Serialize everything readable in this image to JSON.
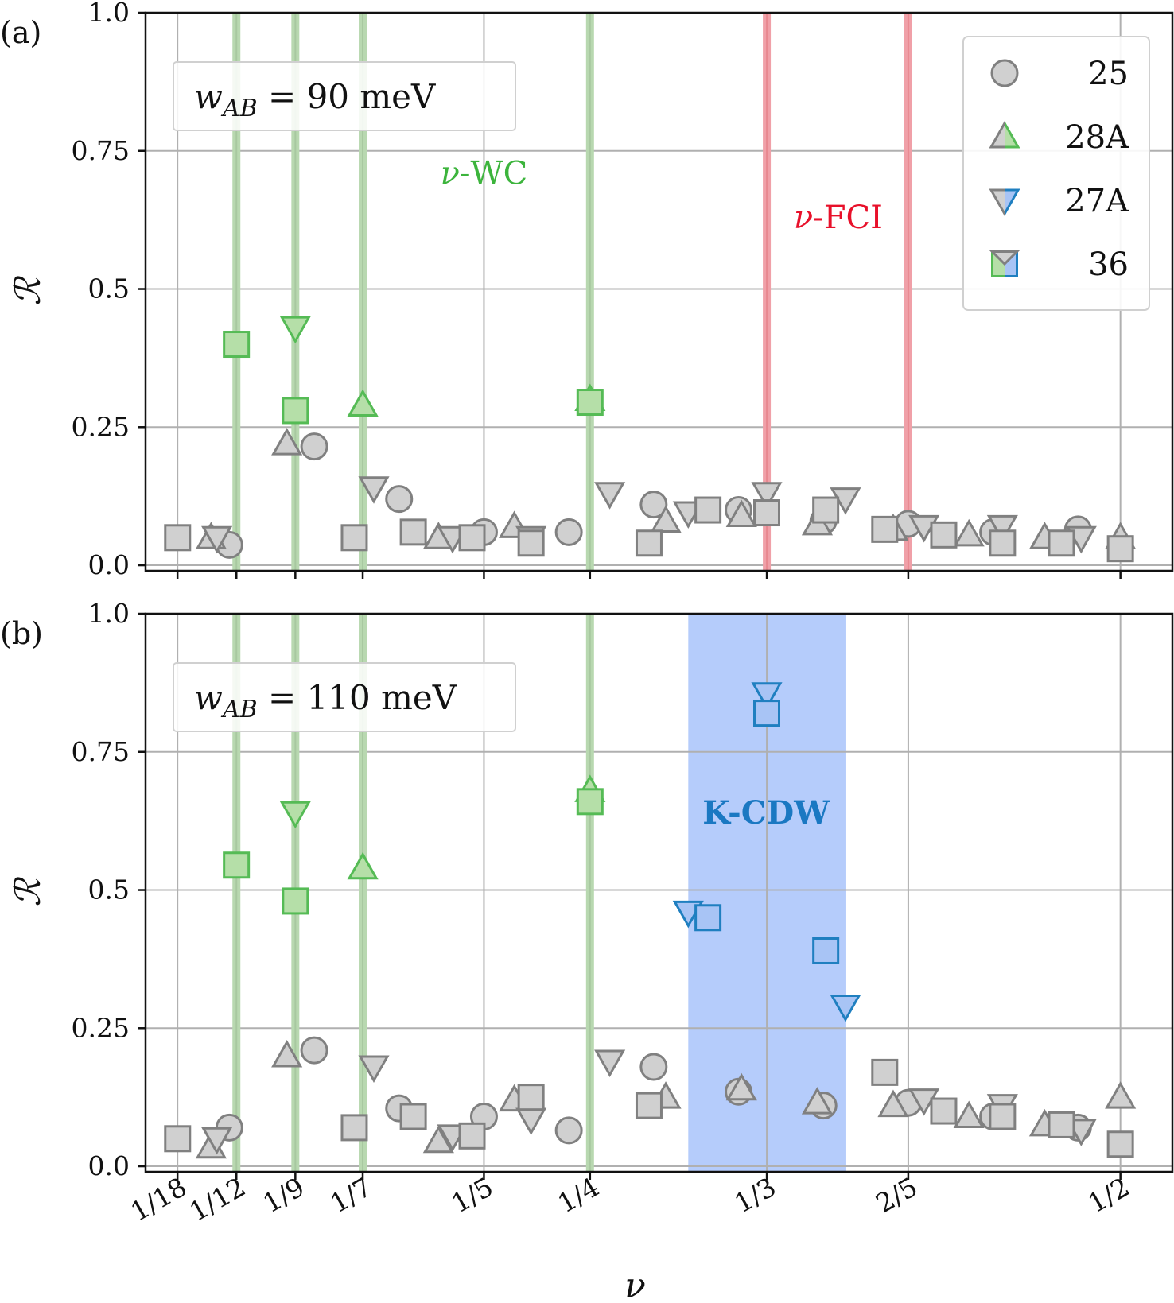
{
  "figure": {
    "xlabel": "ν",
    "x_ticks": [
      {
        "label": "1/18",
        "value": 0.05556
      },
      {
        "label": "1/12",
        "value": 0.08333
      },
      {
        "label": "1/9",
        "value": 0.11111
      },
      {
        "label": "1/7",
        "value": 0.14286
      },
      {
        "label": "1/5",
        "value": 0.2
      },
      {
        "label": "1/4",
        "value": 0.25
      },
      {
        "label": "1/3",
        "value": 0.33333
      },
      {
        "label": "2/5",
        "value": 0.4
      },
      {
        "label": "1/2",
        "value": 0.5
      }
    ],
    "y_ticks": [
      {
        "label": "0.0",
        "value": 0.0
      },
      {
        "label": "0.25",
        "value": 0.25
      },
      {
        "label": "0.5",
        "value": 0.5
      },
      {
        "label": "0.75",
        "value": 0.75
      },
      {
        "label": "1.0",
        "value": 1.0
      }
    ],
    "colors": {
      "gray_fill": "#d0d0d0",
      "gray_edge": "#808080",
      "green_fill": "#b5dfa8",
      "green_edge": "#55bb55",
      "blue_fill": "#a8c4f5",
      "blue_edge": "#1f7fc0",
      "wc_line": "#b8d8b0",
      "fci_line": "#f0a0a8",
      "cdw_band": "#b5ccfb",
      "wc_text": "#3cb43c",
      "fci_text": "#e8102a",
      "cdw_text": "#1a78c2",
      "grid": "#b0b0b0"
    },
    "legend": [
      {
        "label": "25",
        "marker": "circle"
      },
      {
        "label": "28A",
        "marker": "triangle-up"
      },
      {
        "label": "27A",
        "marker": "triangle-down"
      },
      {
        "label": "36",
        "marker": "square"
      }
    ]
  },
  "chart_data": [
    {
      "type": "scatter",
      "panel_label": "(a)",
      "ylabel": "R",
      "ylabel_display": "ℛ",
      "parameter_box": {
        "symbol": "w",
        "subscript": "AB",
        "rest": "= 90 meV"
      },
      "xlim": [
        0.0405,
        0.5245
      ],
      "ylim": [
        -0.01,
        1.0
      ],
      "grid": true,
      "legend_placement": "upper-right",
      "wc_lines": [
        0.08333,
        0.11111,
        0.14286,
        0.25
      ],
      "fci_lines": [
        0.33333,
        0.4
      ],
      "cdw_band": null,
      "annotations": [
        {
          "text": "ν-WC",
          "x": 0.2,
          "y": 0.69,
          "color": "wc"
        },
        {
          "text": "ν-FCI",
          "x": 0.367,
          "y": 0.61,
          "color": "fci"
        }
      ],
      "series": [
        {
          "name": "25",
          "marker": "circle",
          "points": [
            {
              "x": 0.08,
              "y": 0.037,
              "state": "gray"
            },
            {
              "x": 0.12,
              "y": 0.215,
              "state": "gray"
            },
            {
              "x": 0.16,
              "y": 0.12,
              "state": "gray"
            },
            {
              "x": 0.2,
              "y": 0.06,
              "state": "gray"
            },
            {
              "x": 0.24,
              "y": 0.06,
              "state": "gray"
            },
            {
              "x": 0.28,
              "y": 0.11,
              "state": "gray"
            },
            {
              "x": 0.32,
              "y": 0.1,
              "state": "gray"
            },
            {
              "x": 0.36,
              "y": 0.08,
              "state": "gray"
            },
            {
              "x": 0.4,
              "y": 0.075,
              "state": "gray"
            },
            {
              "x": 0.44,
              "y": 0.06,
              "state": "gray"
            },
            {
              "x": 0.48,
              "y": 0.065,
              "state": "gray"
            }
          ]
        },
        {
          "name": "28A",
          "marker": "triangle-up",
          "points": [
            {
              "x": 0.0714,
              "y": 0.05,
              "state": "gray"
            },
            {
              "x": 0.1071,
              "y": 0.22,
              "state": "gray"
            },
            {
              "x": 0.1429,
              "y": 0.29,
              "state": "green"
            },
            {
              "x": 0.1786,
              "y": 0.05,
              "state": "gray"
            },
            {
              "x": 0.2143,
              "y": 0.07,
              "state": "gray"
            },
            {
              "x": 0.25,
              "y": 0.3,
              "state": "green"
            },
            {
              "x": 0.2857,
              "y": 0.08,
              "state": "gray"
            },
            {
              "x": 0.3214,
              "y": 0.09,
              "state": "gray"
            },
            {
              "x": 0.3571,
              "y": 0.075,
              "state": "gray"
            },
            {
              "x": 0.3929,
              "y": 0.065,
              "state": "gray"
            },
            {
              "x": 0.4286,
              "y": 0.055,
              "state": "gray"
            },
            {
              "x": 0.4643,
              "y": 0.05,
              "state": "gray"
            },
            {
              "x": 0.5,
              "y": 0.05,
              "state": "gray"
            }
          ]
        },
        {
          "name": "27A",
          "marker": "triangle-down",
          "points": [
            {
              "x": 0.0741,
              "y": 0.05,
              "state": "gray"
            },
            {
              "x": 0.1111,
              "y": 0.43,
              "state": "green"
            },
            {
              "x": 0.1481,
              "y": 0.14,
              "state": "gray"
            },
            {
              "x": 0.1852,
              "y": 0.05,
              "state": "gray"
            },
            {
              "x": 0.2222,
              "y": 0.05,
              "state": "gray"
            },
            {
              "x": 0.2593,
              "y": 0.13,
              "state": "gray"
            },
            {
              "x": 0.2963,
              "y": 0.095,
              "state": "gray"
            },
            {
              "x": 0.3333,
              "y": 0.13,
              "state": "gray"
            },
            {
              "x": 0.3704,
              "y": 0.12,
              "state": "gray"
            },
            {
              "x": 0.4074,
              "y": 0.07,
              "state": "gray"
            },
            {
              "x": 0.4444,
              "y": 0.07,
              "state": "gray"
            },
            {
              "x": 0.4815,
              "y": 0.05,
              "state": "gray"
            }
          ]
        },
        {
          "name": "36",
          "marker": "square",
          "points": [
            {
              "x": 0.0556,
              "y": 0.05,
              "state": "gray"
            },
            {
              "x": 0.0833,
              "y": 0.4,
              "state": "green"
            },
            {
              "x": 0.1111,
              "y": 0.28,
              "state": "green"
            },
            {
              "x": 0.1389,
              "y": 0.05,
              "state": "gray"
            },
            {
              "x": 0.1667,
              "y": 0.06,
              "state": "gray"
            },
            {
              "x": 0.1944,
              "y": 0.05,
              "state": "gray"
            },
            {
              "x": 0.2222,
              "y": 0.04,
              "state": "gray"
            },
            {
              "x": 0.25,
              "y": 0.295,
              "state": "green"
            },
            {
              "x": 0.2778,
              "y": 0.04,
              "state": "gray"
            },
            {
              "x": 0.3056,
              "y": 0.1,
              "state": "gray"
            },
            {
              "x": 0.3333,
              "y": 0.095,
              "state": "gray"
            },
            {
              "x": 0.3611,
              "y": 0.1,
              "state": "gray"
            },
            {
              "x": 0.3889,
              "y": 0.065,
              "state": "gray"
            },
            {
              "x": 0.4167,
              "y": 0.055,
              "state": "gray"
            },
            {
              "x": 0.4444,
              "y": 0.04,
              "state": "gray"
            },
            {
              "x": 0.4722,
              "y": 0.04,
              "state": "gray"
            },
            {
              "x": 0.5,
              "y": 0.03,
              "state": "gray"
            }
          ]
        }
      ]
    },
    {
      "type": "scatter",
      "panel_label": "(b)",
      "ylabel": "R",
      "ylabel_display": "ℛ",
      "parameter_box": {
        "symbol": "w",
        "subscript": "AB",
        "rest": "= 110 meV"
      },
      "xlim": [
        0.0405,
        0.5245
      ],
      "ylim": [
        -0.01,
        1.0
      ],
      "grid": true,
      "legend_placement": "none",
      "wc_lines": [
        0.08333,
        0.11111,
        0.14286,
        0.25
      ],
      "fci_lines": [],
      "cdw_band": [
        0.2963,
        0.3704
      ],
      "annotations": [
        {
          "text": "K-CDW",
          "x": 0.333,
          "y": 0.62,
          "color": "cdw"
        }
      ],
      "series": [
        {
          "name": "25",
          "marker": "circle",
          "points": [
            {
              "x": 0.08,
              "y": 0.07,
              "state": "gray"
            },
            {
              "x": 0.12,
              "y": 0.21,
              "state": "gray"
            },
            {
              "x": 0.16,
              "y": 0.105,
              "state": "gray"
            },
            {
              "x": 0.2,
              "y": 0.09,
              "state": "gray"
            },
            {
              "x": 0.24,
              "y": 0.065,
              "state": "gray"
            },
            {
              "x": 0.28,
              "y": 0.18,
              "state": "gray"
            },
            {
              "x": 0.32,
              "y": 0.135,
              "state": "gray"
            },
            {
              "x": 0.36,
              "y": 0.11,
              "state": "gray"
            },
            {
              "x": 0.4,
              "y": 0.115,
              "state": "gray"
            },
            {
              "x": 0.44,
              "y": 0.09,
              "state": "gray"
            },
            {
              "x": 0.48,
              "y": 0.07,
              "state": "gray"
            }
          ]
        },
        {
          "name": "28A",
          "marker": "triangle-up",
          "points": [
            {
              "x": 0.0714,
              "y": 0.035,
              "state": "gray"
            },
            {
              "x": 0.1071,
              "y": 0.2,
              "state": "gray"
            },
            {
              "x": 0.1429,
              "y": 0.54,
              "state": "green"
            },
            {
              "x": 0.1786,
              "y": 0.045,
              "state": "gray"
            },
            {
              "x": 0.2143,
              "y": 0.12,
              "state": "gray"
            },
            {
              "x": 0.25,
              "y": 0.68,
              "state": "green"
            },
            {
              "x": 0.2857,
              "y": 0.125,
              "state": "gray"
            },
            {
              "x": 0.3214,
              "y": 0.14,
              "state": "gray"
            },
            {
              "x": 0.3571,
              "y": 0.115,
              "state": "gray"
            },
            {
              "x": 0.3929,
              "y": 0.11,
              "state": "gray"
            },
            {
              "x": 0.4286,
              "y": 0.09,
              "state": "gray"
            },
            {
              "x": 0.4643,
              "y": 0.075,
              "state": "gray"
            },
            {
              "x": 0.5,
              "y": 0.125,
              "state": "gray"
            }
          ]
        },
        {
          "name": "27A",
          "marker": "triangle-down",
          "points": [
            {
              "x": 0.0741,
              "y": 0.05,
              "state": "gray"
            },
            {
              "x": 0.1111,
              "y": 0.64,
              "state": "green"
            },
            {
              "x": 0.1481,
              "y": 0.18,
              "state": "gray"
            },
            {
              "x": 0.1852,
              "y": 0.055,
              "state": "gray"
            },
            {
              "x": 0.2222,
              "y": 0.085,
              "state": "gray"
            },
            {
              "x": 0.2593,
              "y": 0.19,
              "state": "gray"
            },
            {
              "x": 0.2963,
              "y": 0.46,
              "state": "blue"
            },
            {
              "x": 0.3333,
              "y": 0.855,
              "state": "blue"
            },
            {
              "x": 0.3704,
              "y": 0.29,
              "state": "blue"
            },
            {
              "x": 0.4074,
              "y": 0.12,
              "state": "gray"
            },
            {
              "x": 0.4444,
              "y": 0.11,
              "state": "gray"
            },
            {
              "x": 0.4815,
              "y": 0.065,
              "state": "gray"
            }
          ]
        },
        {
          "name": "36",
          "marker": "square",
          "points": [
            {
              "x": 0.0556,
              "y": 0.05,
              "state": "gray"
            },
            {
              "x": 0.0833,
              "y": 0.545,
              "state": "green"
            },
            {
              "x": 0.1111,
              "y": 0.48,
              "state": "green"
            },
            {
              "x": 0.1389,
              "y": 0.07,
              "state": "gray"
            },
            {
              "x": 0.1667,
              "y": 0.09,
              "state": "gray"
            },
            {
              "x": 0.1944,
              "y": 0.055,
              "state": "gray"
            },
            {
              "x": 0.2222,
              "y": 0.125,
              "state": "gray"
            },
            {
              "x": 0.25,
              "y": 0.66,
              "state": "green"
            },
            {
              "x": 0.2778,
              "y": 0.11,
              "state": "gray"
            },
            {
              "x": 0.3056,
              "y": 0.45,
              "state": "blue"
            },
            {
              "x": 0.3333,
              "y": 0.82,
              "state": "blue"
            },
            {
              "x": 0.3611,
              "y": 0.39,
              "state": "blue"
            },
            {
              "x": 0.3889,
              "y": 0.17,
              "state": "gray"
            },
            {
              "x": 0.4167,
              "y": 0.1,
              "state": "gray"
            },
            {
              "x": 0.4444,
              "y": 0.09,
              "state": "gray"
            },
            {
              "x": 0.4722,
              "y": 0.075,
              "state": "gray"
            },
            {
              "x": 0.5,
              "y": 0.04,
              "state": "gray"
            }
          ]
        }
      ]
    }
  ]
}
